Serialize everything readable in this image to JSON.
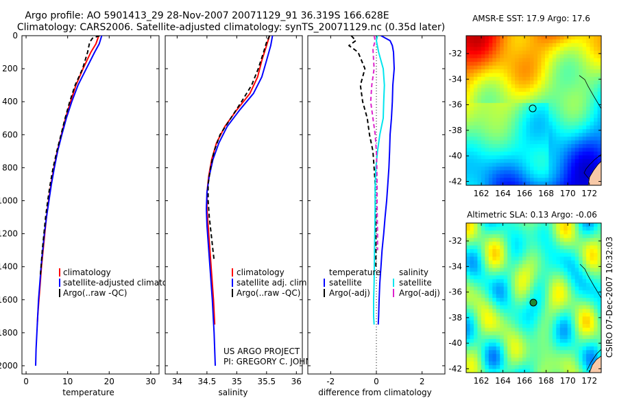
{
  "header": {
    "line1": "Argo profile: AO 5901413_29 28-Nov-2007 20071129_91 36.319S 166.628E",
    "line2": "Climatology: CARS2006. Satellite-adjusted climatology: synTS_20071129.nc (0.35d later)"
  },
  "colors": {
    "climatology": "#ff0000",
    "satellite": "#0000ff",
    "argo": "#000000",
    "salinity_satellite": "#00e5ee",
    "salinity_argo": "#dd22cc"
  },
  "project": {
    "line1": "US ARGO PROJECT",
    "line2": "PI: GREGORY C. JOHNSON"
  },
  "side_label": "CSIRO 07-Dec-2007 10:32:03",
  "chart_data": [
    {
      "id": "temperature",
      "type": "line",
      "xlabel": "temperature",
      "ylabel": "",
      "xlim": [
        -1,
        32
      ],
      "ylim": [
        2050,
        0
      ],
      "xticks": [
        0,
        10,
        20,
        30
      ],
      "yticks": [
        0,
        200,
        400,
        600,
        800,
        1000,
        1200,
        1400,
        1600,
        1800,
        2000
      ],
      "legend": {
        "placement": "lower-right",
        "entries": [
          "climatology",
          "satellite-adjusted climatology",
          "Argo(..raw -QC)"
        ]
      },
      "series": [
        {
          "name": "climatology",
          "style": "red-solid",
          "points": [
            [
              17.5,
              0
            ],
            [
              16.8,
              50
            ],
            [
              15.6,
              100
            ],
            [
              13.7,
              200
            ],
            [
              12.0,
              300
            ],
            [
              10.7,
              400
            ],
            [
              9.5,
              500
            ],
            [
              8.5,
              600
            ],
            [
              7.5,
              700
            ],
            [
              6.7,
              800
            ],
            [
              6.0,
              900
            ],
            [
              5.4,
              1000
            ],
            [
              4.9,
              1100
            ],
            [
              4.5,
              1200
            ],
            [
              4.1,
              1300
            ],
            [
              3.7,
              1400
            ],
            [
              3.4,
              1500
            ],
            [
              3.1,
              1600
            ],
            [
              2.8,
              1700
            ],
            [
              2.7,
              1750
            ]
          ]
        },
        {
          "name": "satellite-adjusted climatology",
          "style": "blue-solid",
          "points": [
            [
              18.2,
              0
            ],
            [
              17.6,
              50
            ],
            [
              16.5,
              100
            ],
            [
              14.5,
              200
            ],
            [
              12.5,
              300
            ],
            [
              11.0,
              400
            ],
            [
              9.7,
              500
            ],
            [
              8.6,
              600
            ],
            [
              7.6,
              700
            ],
            [
              6.8,
              800
            ],
            [
              6.1,
              900
            ],
            [
              5.5,
              1000
            ],
            [
              4.9,
              1100
            ],
            [
              4.4,
              1200
            ],
            [
              4.0,
              1300
            ],
            [
              3.6,
              1400
            ],
            [
              3.3,
              1500
            ],
            [
              3.0,
              1600
            ],
            [
              2.8,
              1700
            ],
            [
              2.6,
              1800
            ],
            [
              2.4,
              1900
            ],
            [
              2.3,
              2000
            ]
          ]
        },
        {
          "name": "Argo(..raw -QC)",
          "style": "black-dashed",
          "points": [
            [
              17.7,
              0
            ],
            [
              16.0,
              15
            ],
            [
              15.3,
              40
            ],
            [
              14.8,
              100
            ],
            [
              13.6,
              200
            ],
            [
              11.8,
              300
            ],
            [
              10.5,
              400
            ],
            [
              9.4,
              500
            ],
            [
              8.4,
              600
            ],
            [
              7.4,
              700
            ],
            [
              6.5,
              800
            ],
            [
              5.8,
              900
            ],
            [
              5.2,
              1000
            ],
            [
              4.7,
              1100
            ],
            [
              4.3,
              1200
            ],
            [
              3.9,
              1300
            ],
            [
              3.6,
              1400
            ],
            [
              3.4,
              1460
            ]
          ]
        }
      ]
    },
    {
      "id": "salinity",
      "type": "line",
      "xlabel": "salinity",
      "ylabel": "",
      "xlim": [
        33.8,
        36.1
      ],
      "ylim": [
        2050,
        0
      ],
      "xticks": [
        34,
        34.5,
        35,
        35.5,
        36
      ],
      "legend": {
        "placement": "lower-right",
        "entries": [
          "climatology",
          "satellite adj. clim.",
          "Argo(..raw -QC)"
        ]
      },
      "series": [
        {
          "name": "climatology",
          "style": "red-solid",
          "points": [
            [
              35.55,
              0
            ],
            [
              35.5,
              60
            ],
            [
              35.42,
              150
            ],
            [
              35.35,
              250
            ],
            [
              35.22,
              350
            ],
            [
              35.0,
              450
            ],
            [
              34.8,
              550
            ],
            [
              34.66,
              650
            ],
            [
              34.58,
              750
            ],
            [
              34.53,
              850
            ],
            [
              34.5,
              950
            ],
            [
              34.5,
              1050
            ],
            [
              34.52,
              1150
            ],
            [
              34.55,
              1300
            ],
            [
              34.58,
              1450
            ],
            [
              34.61,
              1600
            ],
            [
              34.63,
              1750
            ]
          ]
        },
        {
          "name": "satellite adj. clim.",
          "style": "blue-solid",
          "points": [
            [
              35.6,
              0
            ],
            [
              35.57,
              60
            ],
            [
              35.5,
              150
            ],
            [
              35.42,
              250
            ],
            [
              35.28,
              350
            ],
            [
              35.05,
              450
            ],
            [
              34.84,
              550
            ],
            [
              34.7,
              650
            ],
            [
              34.6,
              750
            ],
            [
              34.54,
              850
            ],
            [
              34.5,
              950
            ],
            [
              34.49,
              1050
            ],
            [
              34.5,
              1150
            ],
            [
              34.53,
              1300
            ],
            [
              34.56,
              1450
            ],
            [
              34.59,
              1600
            ],
            [
              34.62,
              1800
            ],
            [
              34.64,
              2000
            ]
          ]
        },
        {
          "name": "Argo(..raw -QC)",
          "style": "black-dashed",
          "points": [
            [
              35.55,
              0
            ],
            [
              35.5,
              40
            ],
            [
              35.45,
              100
            ],
            [
              35.36,
              200
            ],
            [
              35.25,
              300
            ],
            [
              35.08,
              400
            ],
            [
              34.9,
              500
            ],
            [
              34.72,
              600
            ],
            [
              34.62,
              700
            ],
            [
              34.56,
              800
            ],
            [
              34.52,
              900
            ],
            [
              34.52,
              1000
            ],
            [
              34.54,
              1100
            ],
            [
              34.57,
              1200
            ],
            [
              34.6,
              1300
            ],
            [
              34.62,
              1360
            ]
          ]
        }
      ]
    },
    {
      "id": "difference",
      "type": "line",
      "xlabel": "difference from climatology",
      "ylabel": "",
      "xlim": [
        -3,
        3
      ],
      "ylim": [
        2050,
        0
      ],
      "xticks": [
        -2,
        0,
        2
      ],
      "legend": {
        "placement": "lower-center",
        "temperature_header": "temperature",
        "salinity_header": "salinity",
        "entries": [
          "satellite",
          "Argo(-adj)",
          "satellite",
          "Argo(-adj)"
        ]
      },
      "series": [
        {
          "name": "temperature satellite",
          "style": "blue-solid",
          "points": [
            [
              0.2,
              0
            ],
            [
              0.6,
              30
            ],
            [
              0.7,
              60
            ],
            [
              0.75,
              100
            ],
            [
              0.78,
              200
            ],
            [
              0.72,
              300
            ],
            [
              0.7,
              400
            ],
            [
              0.66,
              500
            ],
            [
              0.6,
              600
            ],
            [
              0.58,
              700
            ],
            [
              0.55,
              800
            ],
            [
              0.5,
              900
            ],
            [
              0.45,
              1000
            ],
            [
              0.38,
              1100
            ],
            [
              0.32,
              1200
            ],
            [
              0.25,
              1300
            ],
            [
              0.2,
              1400
            ],
            [
              0.15,
              1500
            ],
            [
              0.12,
              1600
            ],
            [
              0.1,
              1700
            ],
            [
              0.08,
              1750
            ]
          ]
        },
        {
          "name": "temperature Argo(-adj)",
          "style": "black-dashed",
          "points": [
            [
              -1.1,
              0
            ],
            [
              -0.9,
              30
            ],
            [
              -1.2,
              60
            ],
            [
              -0.8,
              100
            ],
            [
              -0.5,
              200
            ],
            [
              -0.7,
              300
            ],
            [
              -0.6,
              400
            ],
            [
              -0.4,
              500
            ],
            [
              -0.3,
              600
            ],
            [
              -0.15,
              700
            ],
            [
              -0.1,
              800
            ],
            [
              -0.05,
              900
            ],
            [
              -0.05,
              1000
            ],
            [
              -0.03,
              1100
            ],
            [
              -0.02,
              1200
            ],
            [
              -0.02,
              1300
            ],
            [
              -0.02,
              1400
            ]
          ]
        },
        {
          "name": "salinity satellite",
          "style": "cyan-solid",
          "points": [
            [
              0.05,
              0
            ],
            [
              0.0,
              30
            ],
            [
              0.1,
              100
            ],
            [
              0.3,
              200
            ],
            [
              0.35,
              300
            ],
            [
              0.32,
              400
            ],
            [
              0.3,
              500
            ],
            [
              0.15,
              600
            ],
            [
              0.05,
              700
            ],
            [
              -0.02,
              800
            ],
            [
              -0.05,
              900
            ],
            [
              -0.05,
              1000
            ],
            [
              -0.06,
              1100
            ],
            [
              -0.07,
              1200
            ],
            [
              -0.08,
              1300
            ],
            [
              -0.09,
              1400
            ],
            [
              -0.1,
              1500
            ],
            [
              -0.12,
              1600
            ],
            [
              -0.12,
              1700
            ],
            [
              -0.1,
              1750
            ]
          ]
        },
        {
          "name": "salinity Argo(-adj)",
          "style": "magenta-dashed",
          "points": [
            [
              -0.1,
              0
            ],
            [
              -0.05,
              30
            ],
            [
              -0.15,
              80
            ],
            [
              -0.1,
              200
            ],
            [
              -0.2,
              300
            ],
            [
              -0.25,
              400
            ],
            [
              -0.15,
              500
            ],
            [
              -0.05,
              600
            ],
            [
              0.0,
              700
            ],
            [
              0.02,
              800
            ],
            [
              0.03,
              900
            ],
            [
              0.03,
              1000
            ],
            [
              0.04,
              1100
            ],
            [
              0.05,
              1200
            ],
            [
              0.05,
              1300
            ]
          ]
        }
      ]
    },
    {
      "id": "sst_map",
      "type": "heatmap",
      "title": "AMSR-E SST: 17.9 Argo: 17.6",
      "xlim": [
        160.6,
        173.1
      ],
      "ylim": [
        -42.3,
        -30.6
      ],
      "xticks": [
        162,
        164,
        166,
        168,
        170,
        172
      ],
      "yticks": [
        -32,
        -34,
        -36,
        -38,
        -40,
        -42
      ],
      "marker": {
        "lon": 166.63,
        "lat": -36.32
      }
    },
    {
      "id": "sla_map",
      "type": "heatmap",
      "title": "Altimetric SLA: 0.13 Argo: -0.06",
      "xlim": [
        160.6,
        173.1
      ],
      "ylim": [
        -42.3,
        -30.6
      ],
      "xticks": [
        162,
        164,
        166,
        168,
        170,
        172
      ],
      "yticks": [
        -32,
        -34,
        -36,
        -38,
        -40,
        -42
      ],
      "marker": {
        "lon": 166.63,
        "lat": -36.32
      }
    }
  ]
}
